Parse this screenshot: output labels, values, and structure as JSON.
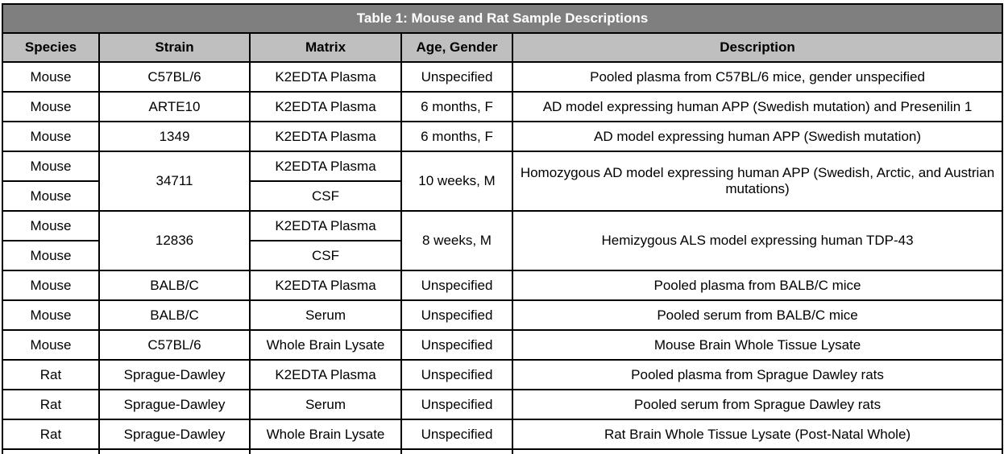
{
  "table": {
    "title": "Table 1: Mouse and Rat Sample Descriptions",
    "columns": [
      "Species",
      "Strain",
      "Matrix",
      "Age, Gender",
      "Description"
    ],
    "rows": [
      {
        "species": "Mouse",
        "strain": "C57BL/6",
        "matrix": "K2EDTA Plasma",
        "age_gender": "Unspecified",
        "description": "Pooled plasma from C57BL/6 mice, gender unspecified"
      },
      {
        "species": "Mouse",
        "strain": "ARTE10",
        "matrix": "K2EDTA Plasma",
        "age_gender": "6 months, F",
        "description": "AD model expressing human APP (Swedish mutation) and Presenilin 1"
      },
      {
        "species": "Mouse",
        "strain": "1349",
        "matrix": "K2EDTA Plasma",
        "age_gender": "6 months, F",
        "description": "AD model expressing human APP (Swedish mutation)"
      },
      {
        "species": "Mouse",
        "strain": "34711",
        "matrix": "K2EDTA Plasma",
        "age_gender": "10 weeks, M",
        "description": "Homozygous AD model expressing human APP (Swedish, Arctic, and Austrian mutations)"
      },
      {
        "species": "Mouse",
        "matrix": "CSF"
      },
      {
        "species": "Mouse",
        "strain": "12836",
        "matrix": "K2EDTA Plasma",
        "age_gender": "8 weeks, M",
        "description": "Hemizygous ALS model expressing human TDP-43"
      },
      {
        "species": "Mouse",
        "matrix": "CSF"
      },
      {
        "species": "Mouse",
        "strain": "BALB/C",
        "matrix": "K2EDTA Plasma",
        "age_gender": "Unspecified",
        "description": "Pooled plasma from BALB/C mice"
      },
      {
        "species": "Mouse",
        "strain": "BALB/C",
        "matrix": "Serum",
        "age_gender": "Unspecified",
        "description": "Pooled serum from BALB/C mice"
      },
      {
        "species": "Mouse",
        "strain": "C57BL/6",
        "matrix": "Whole Brain Lysate",
        "age_gender": "Unspecified",
        "description": "Mouse Brain Whole Tissue Lysate"
      },
      {
        "species": "Rat",
        "strain": "Sprague-Dawley",
        "matrix": "K2EDTA Plasma",
        "age_gender": "Unspecified",
        "description": "Pooled plasma from Sprague Dawley rats"
      },
      {
        "species": "Rat",
        "strain": "Sprague-Dawley",
        "matrix": "Serum",
        "age_gender": "Unspecified",
        "description": "Pooled serum from Sprague Dawley rats"
      },
      {
        "species": "Rat",
        "strain": "Sprague-Dawley",
        "matrix": "Whole Brain Lysate",
        "age_gender": "Unspecified",
        "description": "Rat Brain Whole Tissue Lysate (Post-Natal Whole)"
      }
    ],
    "colors": {
      "title_bar_bg": "#7f7f7f",
      "title_text": "#ffffff",
      "header_bg": "#bfbfbf",
      "header_text": "#000000",
      "body_bg": "#ffffff",
      "border": "#000000"
    }
  }
}
